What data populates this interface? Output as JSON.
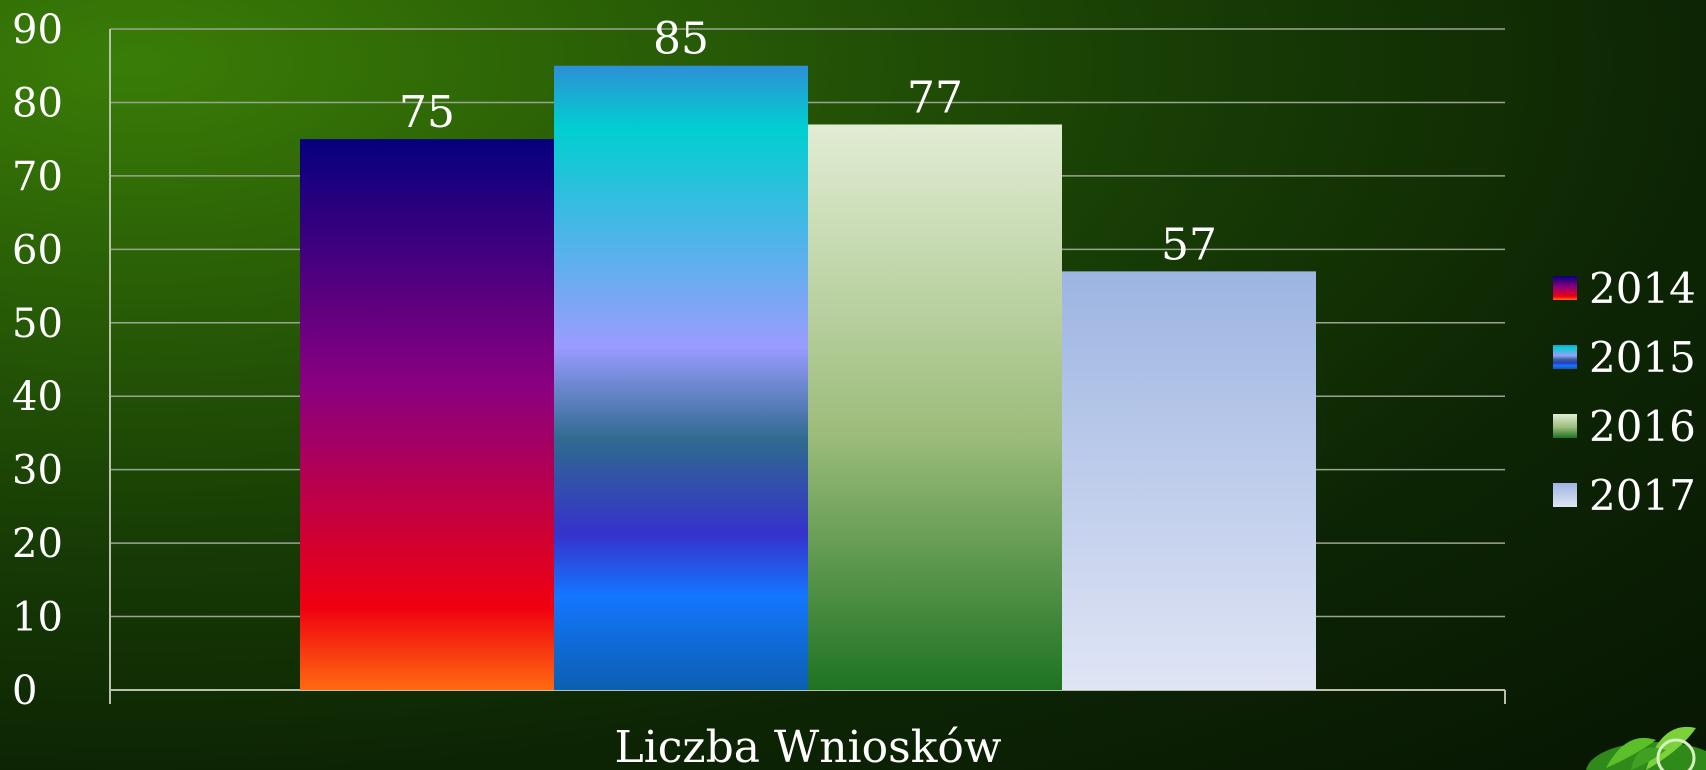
{
  "chart_data": {
    "type": "bar",
    "categories": [
      "Liczba Wniosków"
    ],
    "series": [
      {
        "name": "2014",
        "values": [
          75
        ]
      },
      {
        "name": "2015",
        "values": [
          85
        ]
      },
      {
        "name": "2016",
        "values": [
          77
        ]
      },
      {
        "name": "2017",
        "values": [
          57
        ]
      }
    ],
    "title": "",
    "xlabel": "",
    "ylabel": "",
    "ylim": [
      0,
      90
    ],
    "yticks": [
      0,
      10,
      20,
      30,
      40,
      50,
      60,
      70,
      80,
      90
    ],
    "grid": true,
    "data_labels": true,
    "legend_position": "right",
    "colors": {
      "grid": "#9aa58f",
      "axis": "#b9c1ad",
      "text": "#ffffff"
    },
    "series_gradients": [
      [
        [
          "0%",
          "#05007e"
        ],
        [
          "45%",
          "#8a0080"
        ],
        [
          "85%",
          "#f00010"
        ],
        [
          "100%",
          "#ff6a10"
        ]
      ],
      [
        [
          "0%",
          "#2d8fd6"
        ],
        [
          "10%",
          "#00cfd0"
        ],
        [
          "45%",
          "#9a9cff"
        ],
        [
          "60%",
          "#2f6a8f"
        ],
        [
          "75%",
          "#3632cc"
        ],
        [
          "85%",
          "#1476ff"
        ],
        [
          "100%",
          "#0b5fb0"
        ]
      ],
      [
        [
          "0%",
          "#e2edd4"
        ],
        [
          "55%",
          "#9cbc7b"
        ],
        [
          "100%",
          "#1e7322"
        ]
      ],
      [
        [
          "0%",
          "#9db5e2"
        ],
        [
          "100%",
          "#e0e5f5"
        ]
      ]
    ]
  },
  "decoration": {
    "icon": "leaf-icon"
  }
}
